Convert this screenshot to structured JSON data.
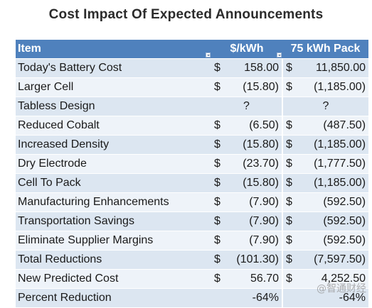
{
  "title": "Cost Impact Of Expected Announcements",
  "headers": {
    "item": "Item",
    "per_kwh": "$/kWh",
    "pack": "75 kWh Pack"
  },
  "rows": [
    {
      "item": "Today's Battery Cost",
      "cur1": "$",
      "v1": "158.00",
      "cur2": "$",
      "v2": "11,850.00"
    },
    {
      "item": "Larger Cell",
      "cur1": "$",
      "v1": "(15.80)",
      "cur2": "$",
      "v2": "(1,185.00)"
    },
    {
      "item": "Tabless Design",
      "q1": "?",
      "q2": "?"
    },
    {
      "item": "Reduced Cobalt",
      "cur1": "$",
      "v1": "(6.50)",
      "cur2": "$",
      "v2": "(487.50)"
    },
    {
      "item": "Increased Density",
      "cur1": "$",
      "v1": "(15.80)",
      "cur2": "$",
      "v2": "(1,185.00)"
    },
    {
      "item": "Dry Electrode",
      "cur1": "$",
      "v1": "(23.70)",
      "cur2": "$",
      "v2": "(1,777.50)"
    },
    {
      "item": "Cell To Pack",
      "cur1": "$",
      "v1": "(15.80)",
      "cur2": "$",
      "v2": "(1,185.00)"
    },
    {
      "item": "Manufacturing Enhancements",
      "cur1": "$",
      "v1": "(7.90)",
      "cur2": "$",
      "v2": "(592.50)"
    },
    {
      "item": "Transportation Savings",
      "cur1": "$",
      "v1": "(7.90)",
      "cur2": "$",
      "v2": "(592.50)"
    },
    {
      "item": "Eliminate Supplier Margins",
      "cur1": "$",
      "v1": "(7.90)",
      "cur2": "$",
      "v2": "(592.50)"
    },
    {
      "item": "Total Reductions",
      "cur1": "$",
      "v1": "(101.30)",
      "cur2": "$",
      "v2": "(7,597.50)"
    },
    {
      "item": "New Predicted Cost",
      "cur1": "$",
      "v1": "56.70",
      "cur2": "$",
      "v2": "4,252.50"
    },
    {
      "item": "Percent Reduction",
      "v1": "-64%",
      "v2": "-64%"
    }
  ],
  "watermark": "@智通财经"
}
